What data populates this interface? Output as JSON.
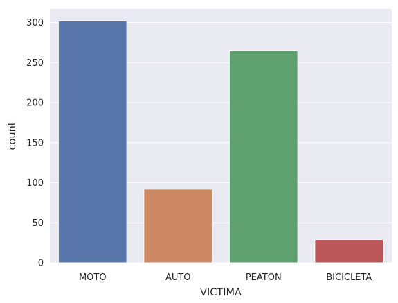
{
  "chart_data": {
    "type": "bar",
    "categories": [
      "MOTO",
      "AUTO",
      "PEATON",
      "BICICLETA"
    ],
    "values": [
      302,
      92,
      265,
      29
    ],
    "colors": [
      "#5875a9",
      "#cd8963",
      "#5fa06f",
      "#bc5759"
    ],
    "xlabel": "VICTIMA",
    "ylabel": "count",
    "ylim": [
      0,
      317
    ],
    "yticks": [
      0,
      50,
      100,
      150,
      200,
      250,
      300
    ],
    "grid": true,
    "legend": "none"
  }
}
